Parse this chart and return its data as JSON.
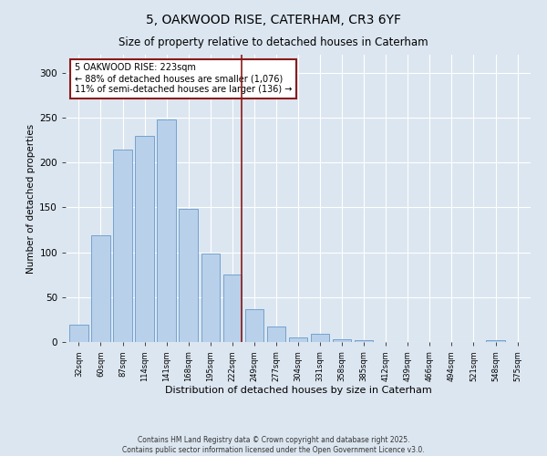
{
  "title": "5, OAKWOOD RISE, CATERHAM, CR3 6YF",
  "subtitle": "Size of property relative to detached houses in Caterham",
  "xlabel": "Distribution of detached houses by size in Caterham",
  "ylabel": "Number of detached properties",
  "categories": [
    "32sqm",
    "60sqm",
    "87sqm",
    "114sqm",
    "141sqm",
    "168sqm",
    "195sqm",
    "222sqm",
    "249sqm",
    "277sqm",
    "304sqm",
    "331sqm",
    "358sqm",
    "385sqm",
    "412sqm",
    "439sqm",
    "466sqm",
    "494sqm",
    "521sqm",
    "548sqm",
    "575sqm"
  ],
  "values": [
    19,
    119,
    214,
    230,
    248,
    148,
    99,
    75,
    37,
    17,
    5,
    9,
    3,
    2,
    0,
    0,
    0,
    0,
    0,
    2,
    0
  ],
  "bar_color": "#b8d0ea",
  "bar_edge_color": "#6699cc",
  "vline_color": "#8b1a1a",
  "annotation_text": "5 OAKWOOD RISE: 223sqm\n← 88% of detached houses are smaller (1,076)\n11% of semi-detached houses are larger (136) →",
  "annotation_box_color": "#8b1a1a",
  "ylim": [
    0,
    320
  ],
  "yticks": [
    0,
    50,
    100,
    150,
    200,
    250,
    300
  ],
  "footer_line1": "Contains HM Land Registry data © Crown copyright and database right 2025.",
  "footer_line2": "Contains public sector information licensed under the Open Government Licence v3.0.",
  "bg_color": "#dce6f0",
  "plot_bg_color": "#dce6f0"
}
